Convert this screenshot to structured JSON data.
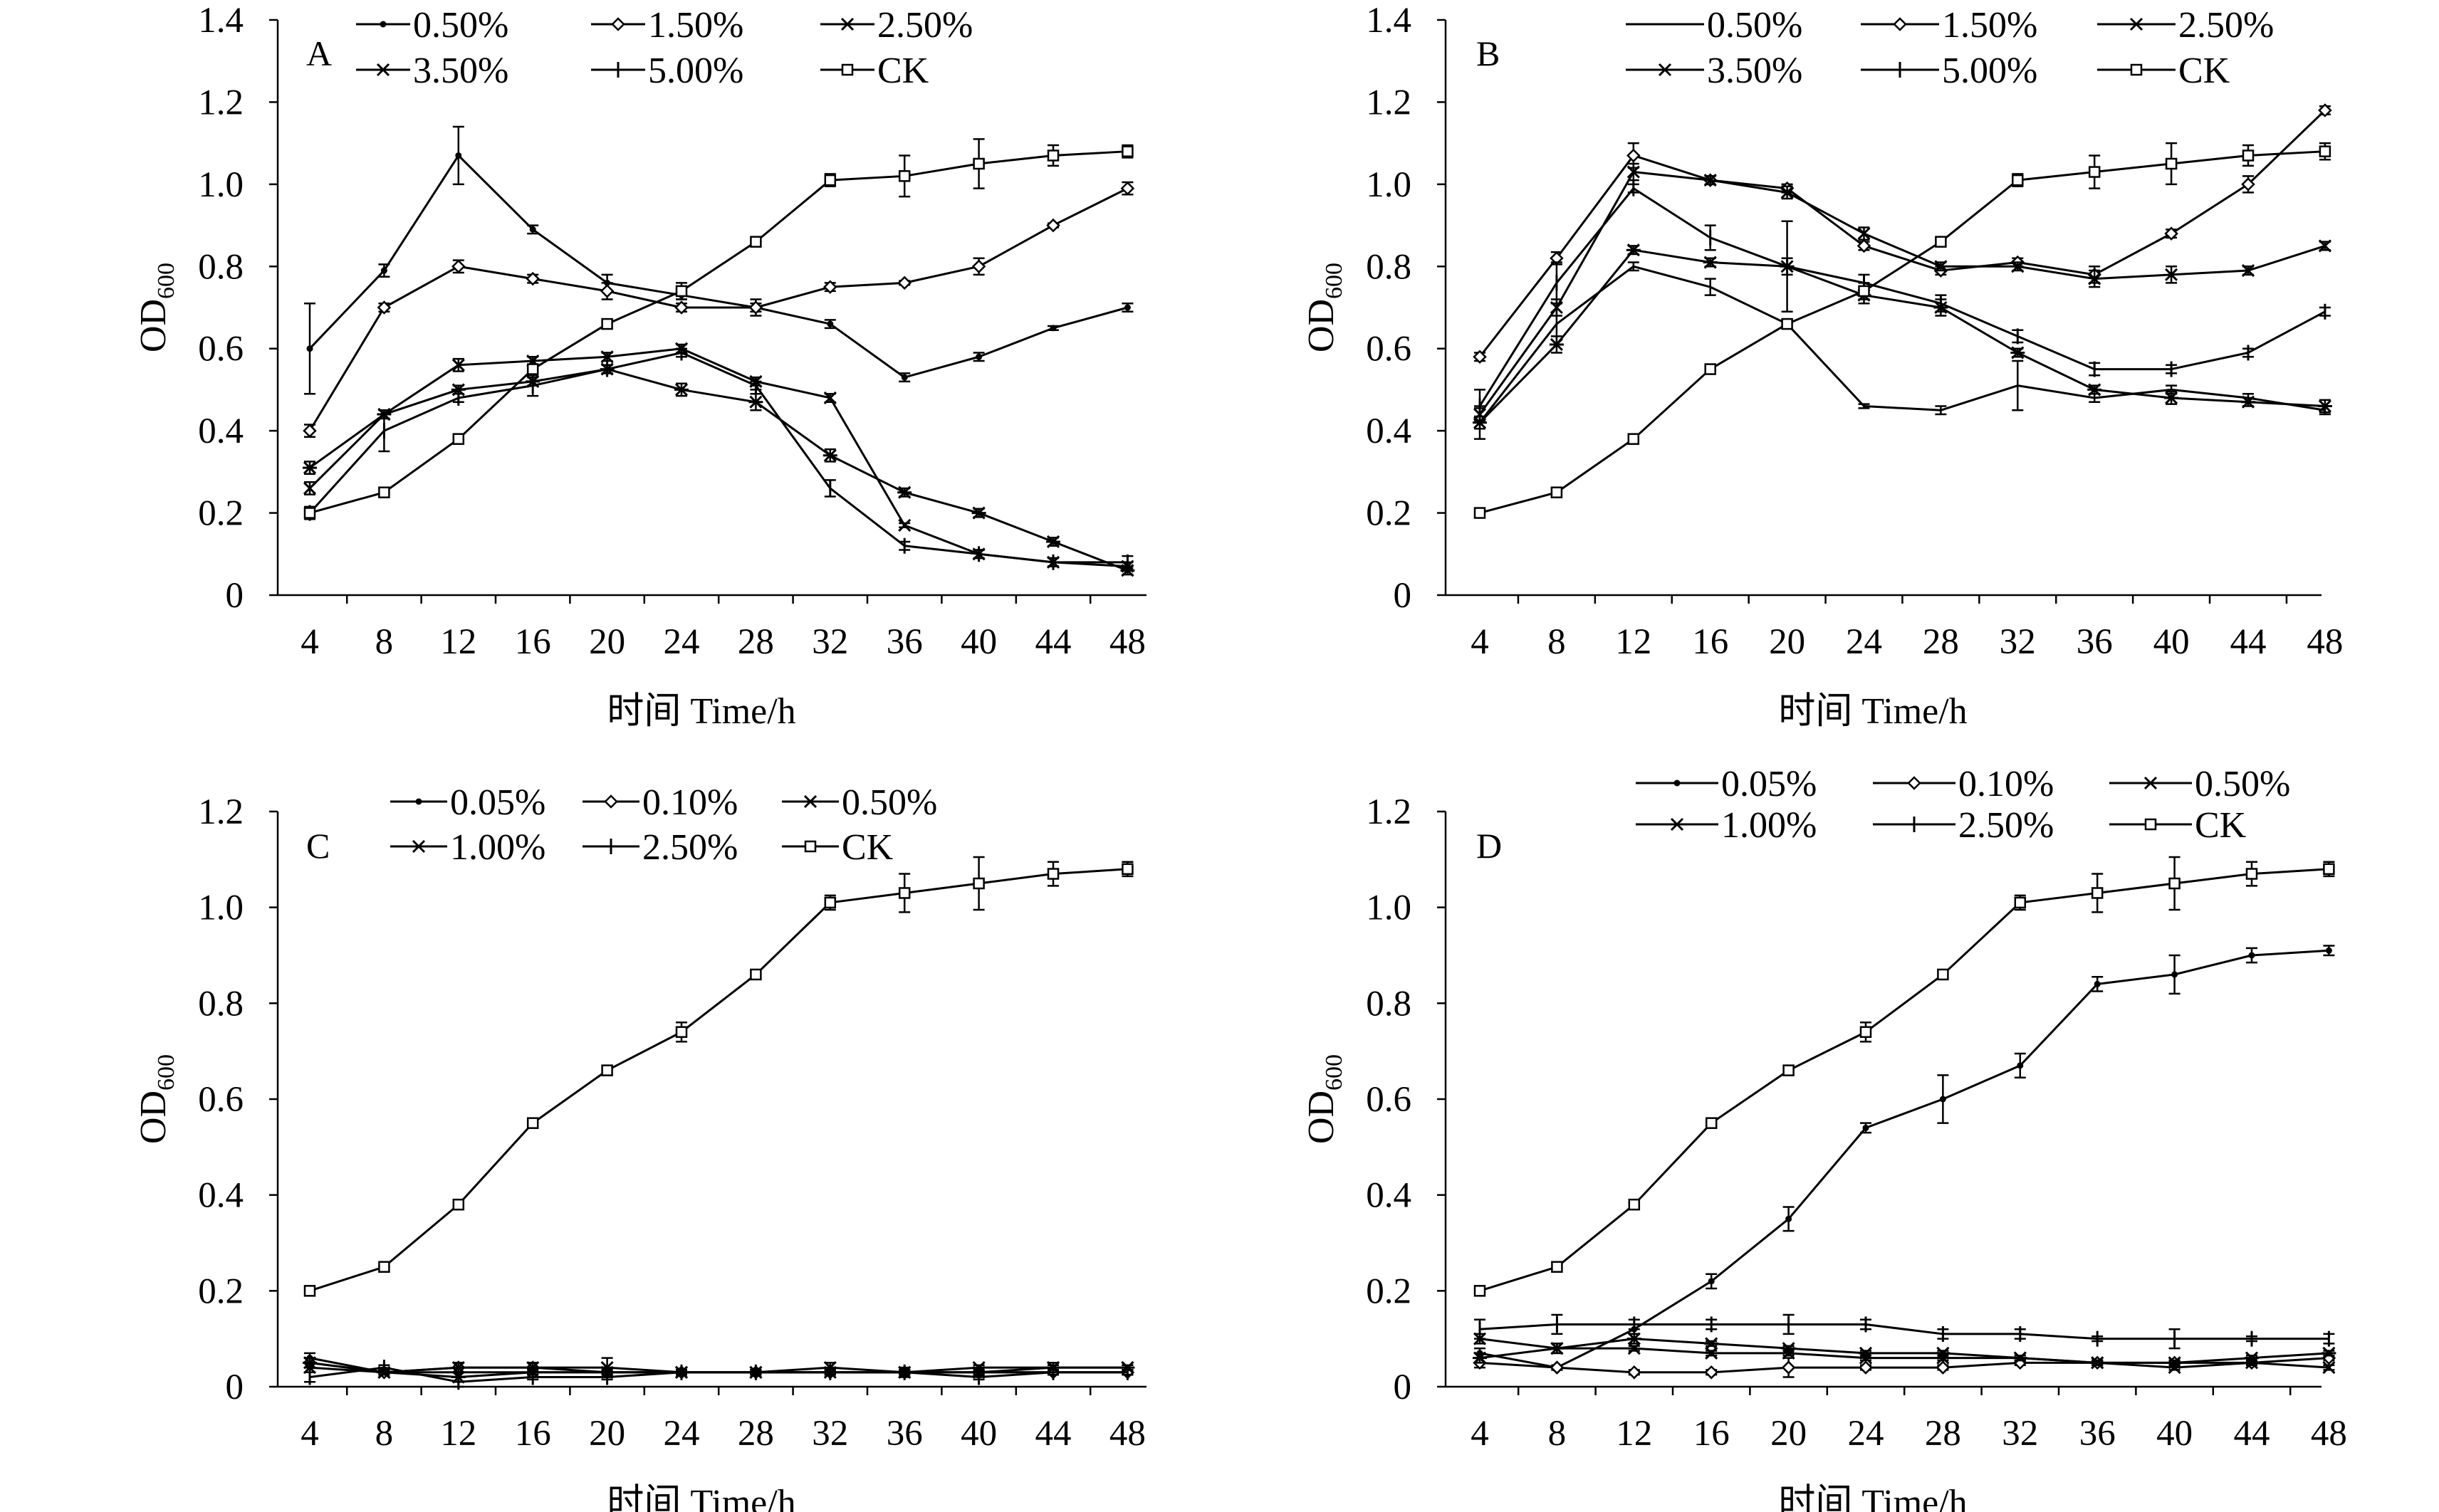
{
  "chart_data": [
    {
      "type": "line",
      "panel_label": "A",
      "xlabel": "时间 Time/h",
      "ylabel": "OD",
      "ylabel_sub": "600",
      "x": [
        4,
        8,
        12,
        16,
        20,
        24,
        28,
        32,
        36,
        40,
        44,
        48
      ],
      "x_tick_labels": [
        "4",
        "8",
        "12",
        "16",
        "20",
        "24",
        "28",
        "32",
        "36",
        "40",
        "44",
        "48"
      ],
      "ylim": [
        0,
        1.4
      ],
      "y_ticks": [
        0,
        0.2,
        0.4,
        0.6,
        0.8,
        1.0,
        1.2,
        1.4
      ],
      "y_tick_labels": [
        "0",
        "0.2",
        "0.4",
        "0.6",
        "0.8",
        "1.0",
        "1.2",
        "1.4"
      ],
      "series": [
        {
          "name": "0.50%",
          "marker": "dot",
          "values": [
            0.6,
            0.79,
            1.07,
            0.89,
            0.76,
            0.73,
            0.7,
            0.66,
            0.53,
            0.58,
            0.65,
            0.7
          ],
          "errors": [
            0.11,
            0.015,
            0.07,
            0.01,
            0.02,
            0.01,
            0.01,
            0.01,
            0.01,
            0.01,
            0.005,
            0.01
          ]
        },
        {
          "name": "1.50%",
          "marker": "diamond",
          "values": [
            0.4,
            0.7,
            0.8,
            0.77,
            0.74,
            0.7,
            0.7,
            0.75,
            0.76,
            0.8,
            0.9,
            0.99
          ],
          "errors": [
            0.015,
            0.01,
            0.015,
            0.01,
            0.02,
            0.01,
            0.02,
            0.01,
            0.005,
            0.02,
            0.005,
            0.015
          ]
        },
        {
          "name": "2.50%",
          "marker": "x",
          "values": [
            0.26,
            0.44,
            0.56,
            0.57,
            0.58,
            0.6,
            0.52,
            0.48,
            0.17,
            0.1,
            0.08,
            0.07
          ],
          "errors": [
            0.015,
            0.01,
            0.015,
            0.01,
            0.01,
            0.01,
            0.01,
            0.01,
            0.005,
            0.01,
            0.01,
            0.01
          ]
        },
        {
          "name": "3.50%",
          "marker": "star",
          "values": [
            0.31,
            0.44,
            0.5,
            0.52,
            0.55,
            0.5,
            0.47,
            0.34,
            0.25,
            0.2,
            0.13,
            0.06
          ],
          "errors": [
            0.015,
            0.01,
            0.01,
            0.01,
            0.01,
            0.015,
            0.02,
            0.015,
            0.01,
            0.01,
            0.01,
            0.01
          ]
        },
        {
          "name": "5.00%",
          "marker": "plus",
          "values": [
            0.2,
            0.4,
            0.48,
            0.51,
            0.55,
            0.59,
            0.51,
            0.26,
            0.12,
            0.1,
            0.08,
            0.08
          ],
          "errors": [
            0.015,
            0.05,
            0.01,
            0.025,
            0.01,
            0.01,
            0.01,
            0.02,
            0.01,
            0.01,
            0.01,
            0.015
          ]
        },
        {
          "name": "CK",
          "marker": "square",
          "values": [
            0.2,
            0.25,
            0.38,
            0.55,
            0.66,
            0.74,
            0.86,
            1.01,
            1.02,
            1.05,
            1.07,
            1.08
          ],
          "errors": [
            0.01,
            0.01,
            0.01,
            0.01,
            0.01,
            0.02,
            0.01,
            0.015,
            0.05,
            0.06,
            0.025,
            0.015
          ]
        }
      ]
    },
    {
      "type": "line",
      "panel_label": "B",
      "xlabel": "时间 Time/h",
      "ylabel": "OD",
      "ylabel_sub": "600",
      "x": [
        4,
        8,
        12,
        16,
        20,
        24,
        28,
        32,
        36,
        40,
        44,
        48
      ],
      "x_tick_labels": [
        "4",
        "8",
        "12",
        "16",
        "20",
        "24",
        "28",
        "32",
        "36",
        "40",
        "44",
        "48"
      ],
      "ylim": [
        0,
        1.4
      ],
      "y_ticks": [
        0,
        0.2,
        0.4,
        0.6,
        0.8,
        1.0,
        1.2,
        1.4
      ],
      "y_tick_labels": [
        "0",
        "0.2",
        "0.4",
        "0.6",
        "0.8",
        "1.0",
        "1.2",
        "1.4"
      ],
      "series": [
        {
          "name": "0.50%",
          "marker": "none",
          "values": [
            0.42,
            0.66,
            0.8,
            0.75,
            0.66,
            0.46,
            0.45,
            0.51,
            0.48,
            0.5,
            0.48,
            0.45
          ],
          "errors": [
            0.04,
            0.05,
            0.01,
            0.02,
            0.01,
            0.005,
            0.01,
            0.06,
            0.01,
            0.01,
            0.01,
            0.01
          ]
        },
        {
          "name": "1.50%",
          "marker": "diamond",
          "values": [
            0.58,
            0.82,
            1.07,
            1.01,
            0.99,
            0.85,
            0.79,
            0.81,
            0.78,
            0.88,
            1.0,
            1.18
          ],
          "errors": [
            0.01,
            0.015,
            0.03,
            0.01,
            0.01,
            0.01,
            0.01,
            0.01,
            0.02,
            0.01,
            0.02,
            0.01
          ]
        },
        {
          "name": "2.50%",
          "marker": "x",
          "values": [
            0.44,
            0.7,
            1.03,
            1.01,
            0.98,
            0.88,
            0.8,
            0.8,
            0.77,
            0.78,
            0.79,
            0.85
          ],
          "errors": [
            0.015,
            0.02,
            0.02,
            0.01,
            0.015,
            0.015,
            0.01,
            0.01,
            0.02,
            0.02,
            0.01,
            0.01
          ]
        },
        {
          "name": "3.50%",
          "marker": "star",
          "values": [
            0.42,
            0.61,
            0.84,
            0.81,
            0.8,
            0.73,
            0.7,
            0.59,
            0.5,
            0.48,
            0.47,
            0.46
          ],
          "errors": [
            0.015,
            0.02,
            0.01,
            0.01,
            0.11,
            0.02,
            0.02,
            0.01,
            0.01,
            0.015,
            0.01,
            0.015
          ]
        },
        {
          "name": "5.00%",
          "marker": "plus",
          "values": [
            0.46,
            0.76,
            0.99,
            0.87,
            0.8,
            0.76,
            0.71,
            0.63,
            0.55,
            0.55,
            0.59,
            0.69
          ],
          "errors": [
            0.04,
            0.05,
            0.01,
            0.03,
            0.02,
            0.02,
            0.02,
            0.015,
            0.015,
            0.01,
            0.01,
            0.01
          ]
        },
        {
          "name": "CK",
          "marker": "square",
          "values": [
            0.2,
            0.25,
            0.38,
            0.55,
            0.66,
            0.74,
            0.86,
            1.01,
            1.03,
            1.05,
            1.07,
            1.08
          ],
          "errors": [
            0.01,
            0.01,
            0.01,
            0.01,
            0.01,
            0.02,
            0.01,
            0.015,
            0.04,
            0.05,
            0.025,
            0.02
          ]
        }
      ]
    },
    {
      "type": "line",
      "panel_label": "C",
      "xlabel": "时间 Time/h",
      "ylabel": "OD",
      "ylabel_sub": "600",
      "x": [
        4,
        8,
        12,
        16,
        20,
        24,
        28,
        32,
        36,
        40,
        44,
        48
      ],
      "x_tick_labels": [
        "4",
        "8",
        "12",
        "16",
        "20",
        "24",
        "28",
        "32",
        "36",
        "40",
        "44",
        "48"
      ],
      "ylim": [
        0,
        1.2
      ],
      "y_ticks": [
        0,
        0.2,
        0.4,
        0.6,
        0.8,
        1.0,
        1.2
      ],
      "y_tick_labels": [
        "0",
        "0.2",
        "0.4",
        "0.6",
        "0.8",
        "1.0",
        "1.2"
      ],
      "series": [
        {
          "name": "0.05%",
          "marker": "dot",
          "values": [
            0.06,
            0.03,
            0.03,
            0.03,
            0.03,
            0.03,
            0.03,
            0.03,
            0.03,
            0.03,
            0.03,
            0.03
          ],
          "errors": [
            0.01,
            0.005,
            0.01,
            0.005,
            0.005,
            0.005,
            0.005,
            0.005,
            0.005,
            0.005,
            0.005,
            0.005
          ]
        },
        {
          "name": "0.10%",
          "marker": "diamond",
          "values": [
            0.05,
            0.03,
            0.04,
            0.04,
            0.03,
            0.03,
            0.03,
            0.03,
            0.03,
            0.03,
            0.03,
            0.03
          ],
          "errors": [
            0.01,
            0.005,
            0.01,
            0.01,
            0.01,
            0.005,
            0.005,
            0.005,
            0.005,
            0.005,
            0.005,
            0.005
          ]
        },
        {
          "name": "0.50%",
          "marker": "x",
          "values": [
            0.04,
            0.03,
            0.04,
            0.04,
            0.04,
            0.03,
            0.03,
            0.04,
            0.03,
            0.04,
            0.04,
            0.04
          ],
          "errors": [
            0.01,
            0.005,
            0.01,
            0.01,
            0.02,
            0.005,
            0.005,
            0.01,
            0.01,
            0.005,
            0.005,
            0.005
          ]
        },
        {
          "name": "1.00%",
          "marker": "star",
          "values": [
            0.05,
            0.03,
            0.02,
            0.03,
            0.03,
            0.03,
            0.03,
            0.03,
            0.03,
            0.03,
            0.04,
            0.04
          ],
          "errors": [
            0.01,
            0.005,
            0.01,
            0.005,
            0.005,
            0.005,
            0.005,
            0.005,
            0.005,
            0.005,
            0.01,
            0.005
          ]
        },
        {
          "name": "2.50%",
          "marker": "plus",
          "values": [
            0.02,
            0.04,
            0.01,
            0.02,
            0.02,
            0.03,
            0.03,
            0.03,
            0.03,
            0.02,
            0.03,
            0.03
          ],
          "errors": [
            0.01,
            0.005,
            0.01,
            0.005,
            0.005,
            0.005,
            0.005,
            0.005,
            0.005,
            0.005,
            0.005,
            0.005
          ]
        },
        {
          "name": "CK",
          "marker": "square",
          "values": [
            0.2,
            0.25,
            0.38,
            0.55,
            0.66,
            0.74,
            0.86,
            1.01,
            1.03,
            1.05,
            1.07,
            1.08
          ],
          "errors": [
            0.01,
            0.01,
            0.01,
            0.01,
            0.01,
            0.02,
            0.01,
            0.015,
            0.04,
            0.055,
            0.025,
            0.015
          ]
        }
      ]
    },
    {
      "type": "line",
      "panel_label": "D",
      "xlabel": "时间 Time/h",
      "ylabel": "OD",
      "ylabel_sub": "600",
      "x": [
        4,
        8,
        12,
        16,
        20,
        24,
        28,
        32,
        36,
        40,
        44,
        48
      ],
      "x_tick_labels": [
        "4",
        "8",
        "12",
        "16",
        "20",
        "24",
        "28",
        "32",
        "36",
        "40",
        "44",
        "48"
      ],
      "ylim": [
        0,
        1.2
      ],
      "y_ticks": [
        0,
        0.2,
        0.4,
        0.6,
        0.8,
        1.0,
        1.2
      ],
      "y_tick_labels": [
        "0",
        "0.2",
        "0.4",
        "0.6",
        "0.8",
        "1.0",
        "1.2"
      ],
      "series": [
        {
          "name": "0.05%",
          "marker": "dot",
          "values": [
            0.07,
            0.04,
            0.12,
            0.22,
            0.35,
            0.54,
            0.6,
            0.67,
            0.84,
            0.86,
            0.9,
            0.91
          ],
          "errors": [
            0.01,
            0.005,
            0.01,
            0.015,
            0.025,
            0.01,
            0.05,
            0.025,
            0.015,
            0.04,
            0.015,
            0.01
          ]
        },
        {
          "name": "0.10%",
          "marker": "diamond",
          "values": [
            0.05,
            0.04,
            0.03,
            0.03,
            0.04,
            0.04,
            0.04,
            0.05,
            0.05,
            0.05,
            0.05,
            0.06
          ],
          "errors": [
            0.01,
            0.005,
            0.005,
            0.005,
            0.02,
            0.005,
            0.005,
            0.005,
            0.005,
            0.005,
            0.005,
            0.005
          ]
        },
        {
          "name": "0.50%",
          "marker": "x",
          "values": [
            0.1,
            0.08,
            0.08,
            0.07,
            0.07,
            0.06,
            0.06,
            0.06,
            0.05,
            0.04,
            0.05,
            0.04
          ],
          "errors": [
            0.01,
            0.01,
            0.005,
            0.005,
            0.005,
            0.005,
            0.005,
            0.005,
            0.005,
            0.005,
            0.005,
            0.005
          ]
        },
        {
          "name": "1.00%",
          "marker": "star",
          "values": [
            0.06,
            0.08,
            0.1,
            0.09,
            0.08,
            0.07,
            0.07,
            0.06,
            0.05,
            0.05,
            0.06,
            0.07
          ],
          "errors": [
            0.01,
            0.01,
            0.01,
            0.005,
            0.005,
            0.005,
            0.005,
            0.005,
            0.005,
            0.005,
            0.005,
            0.005
          ]
        },
        {
          "name": "2.50%",
          "marker": "plus",
          "values": [
            0.12,
            0.13,
            0.13,
            0.13,
            0.13,
            0.13,
            0.11,
            0.11,
            0.1,
            0.1,
            0.1,
            0.1
          ],
          "errors": [
            0.02,
            0.02,
            0.01,
            0.01,
            0.02,
            0.01,
            0.01,
            0.01,
            0.005,
            0.02,
            0.005,
            0.01
          ]
        },
        {
          "name": "CK",
          "marker": "square",
          "values": [
            0.2,
            0.25,
            0.38,
            0.55,
            0.66,
            0.74,
            0.86,
            1.01,
            1.03,
            1.05,
            1.07,
            1.08
          ],
          "errors": [
            0.01,
            0.01,
            0.01,
            0.01,
            0.01,
            0.02,
            0.01,
            0.015,
            0.04,
            0.055,
            0.025,
            0.015
          ]
        }
      ]
    }
  ]
}
